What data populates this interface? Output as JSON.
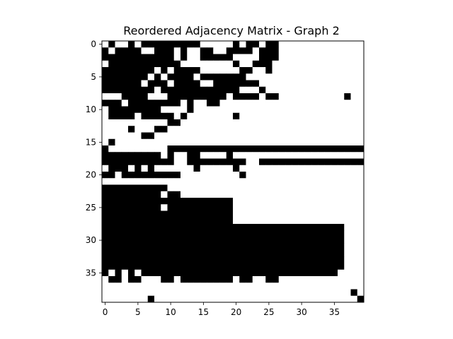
{
  "chart_data": {
    "type": "heatmap",
    "title": "Reordered Adjacency Matrix - Graph 2",
    "xlabel": "",
    "ylabel": "",
    "size": 40,
    "colormap": {
      "0": "#ffffff",
      "1": "#000000"
    },
    "grid": false,
    "x_ticks": [
      0,
      5,
      10,
      15,
      20,
      25,
      30,
      35
    ],
    "y_ticks": [
      0,
      5,
      10,
      15,
      20,
      25,
      30,
      35
    ],
    "matrix": [
      "0100101111111110000010110110000000000000",
      "1011110011101001100111101110000000000000",
      "1111111111101001111100001110000000000000",
      "0111111111110000000010011100000000000000",
      "1111111101011110000001100100000000000000",
      "1111111010111101111111000000000000000000",
      "1111110111011110011111110000000000000000",
      "1111111101111111111110001000000000000000",
      "0001111000111111111011110110000000000100",
      "1110111111110100110000000000000000000000",
      "0111111110000100000000000000000000000000",
      "0111101111101000000010000000000000000000",
      "0000000000110000000000000000000000000000",
      "0000100011000000000000000000000000000000",
      "0000001100000000000000000000000000000000",
      "0100000000000000000000000000000000000000",
      "1000000000111111111111111111111111111111",
      "1111111110100110000100000000000000000000",
      "1111111111100111111111001111111111111111",
      "0111010100000010000010000000000000000000",
      "1101111111110000000001000000000000000000",
      "0000000000000000000000000000000000000000",
      "1111111111000000000000000000000000000000",
      "1111111110110000000000000000000000000000",
      "1111111111111111111100000000000000000000",
      "1111111110111111111100000000000000000000",
      "1111111111111111111100000000000000000000",
      "1111111111111111111100000000000000000000",
      "1111111111111111111111111111111111111000",
      "1111111111111111111111111111111111111000",
      "1111111111111111111111111111111111111000",
      "1111111111111111111111111111111111111000",
      "1111111111111111111111111111111111111000",
      "1111111111111111111111111111111111111000",
      "1111111111111111111111111111111111111000",
      "1010101111111111111111111111111111110000",
      "0110110001101111111101100110000000000000",
      "0000000000000000000000000000000000000000",
      "0000000000000000000000000000000000000010",
      "0000000100000000000000000000000000000001"
    ]
  }
}
